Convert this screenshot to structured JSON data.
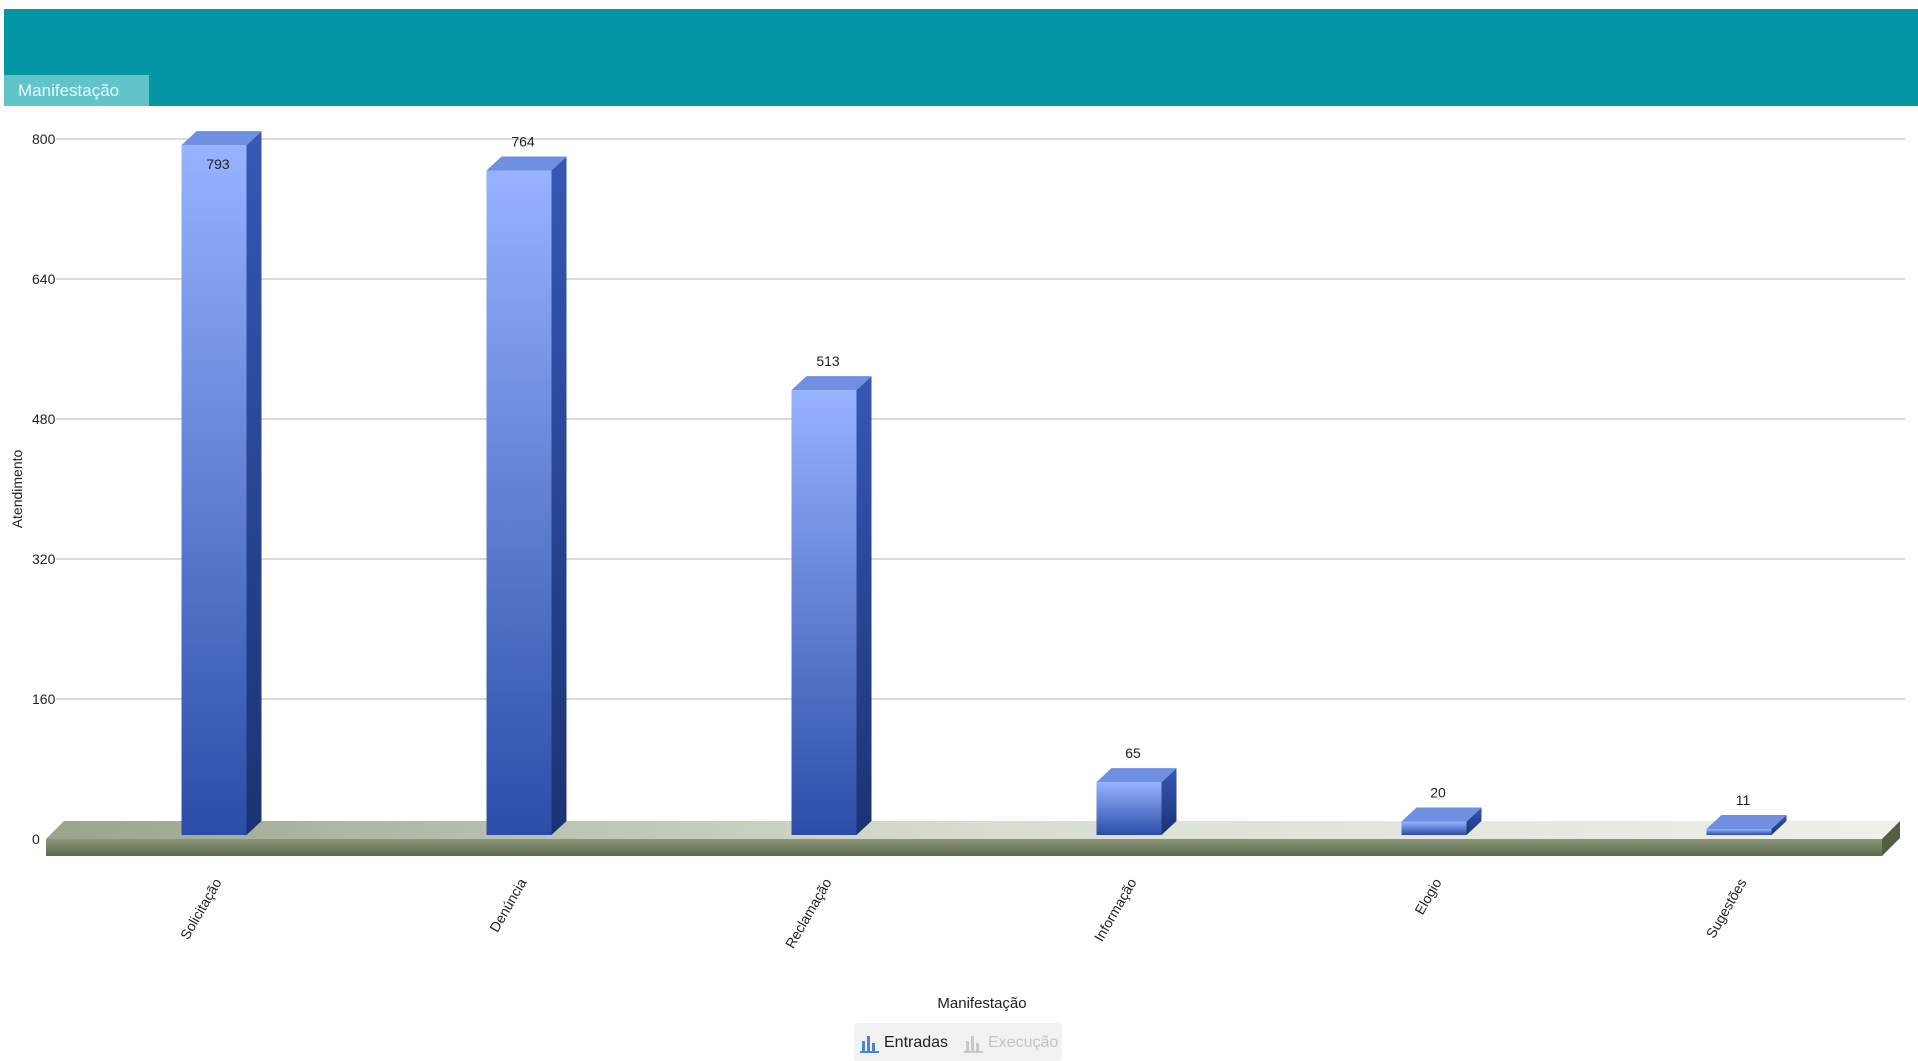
{
  "header": {
    "tab_label": "Manifestação"
  },
  "chart_data": {
    "type": "bar",
    "categories": [
      "Solicitação",
      "Denúncia",
      "Reclamação",
      "Informação",
      "Elogio",
      "Sugestões"
    ],
    "series": [
      {
        "name": "Entradas",
        "values": [
          793,
          764,
          513,
          65,
          20,
          11
        ]
      }
    ],
    "xlabel": "Manifestação",
    "ylabel": "Atendimento",
    "ylim": [
      0,
      800
    ],
    "yticks": [
      0,
      160,
      320,
      480,
      640,
      800
    ],
    "grid": true,
    "legend_position": "bottom-center",
    "bar_color": "#3f63c4"
  },
  "legend": {
    "items": [
      {
        "label": "Entradas",
        "active": true,
        "color": "#4a86d8"
      },
      {
        "label": "Execução",
        "active": false,
        "color": "#c8c8c8"
      }
    ]
  }
}
